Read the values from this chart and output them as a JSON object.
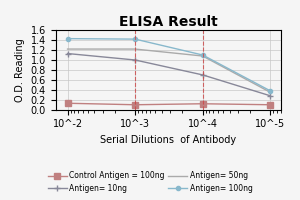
{
  "title": "ELISA Result",
  "xlabel": "Serial Dilutions  of Antibody",
  "ylabel": "O.D. Reading",
  "x_values": [
    0.01,
    0.001,
    0.0001,
    1e-05
  ],
  "series": [
    {
      "label": "Control Antigen = 100ng",
      "color": "#c08080",
      "marker": "s",
      "markersize": 4,
      "linewidth": 1.0,
      "y": [
        0.13,
        0.1,
        0.12,
        0.1
      ]
    },
    {
      "label": "Antigen= 10ng",
      "color": "#888899",
      "marker": "+",
      "markersize": 5,
      "linewidth": 1.0,
      "y": [
        1.13,
        1.0,
        0.7,
        0.28
      ]
    },
    {
      "label": "Antigen= 50ng",
      "color": "#aaaaaa",
      "marker": null,
      "markersize": 0,
      "linewidth": 1.0,
      "y": [
        1.22,
        1.22,
        1.08,
        0.35
      ]
    },
    {
      "label": "Antigen= 100ng",
      "color": "#88b8cc",
      "marker": "o",
      "markersize": 3,
      "linewidth": 1.0,
      "y": [
        1.43,
        1.42,
        1.1,
        0.38
      ]
    }
  ],
  "ylim": [
    0,
    1.6
  ],
  "yticks": [
    0,
    0.2,
    0.4,
    0.6,
    0.8,
    1.0,
    1.2,
    1.4,
    1.6
  ],
  "xlim_left": 0.015,
  "xlim_right": 7e-06,
  "xtick_positions": [
    0.01,
    0.001,
    0.0001,
    1e-05
  ],
  "xtick_labels": [
    "10^-2",
    "10^-3",
    "10^-4",
    "10^-5"
  ],
  "vlines": [
    0.001,
    0.0001
  ],
  "vline_color": "#cc4444",
  "background_color": "#f5f5f5",
  "grid_color": "#c8c8c8",
  "title_fontsize": 10,
  "axis_label_fontsize": 7,
  "tick_fontsize": 7,
  "legend_fontsize": 5.5
}
